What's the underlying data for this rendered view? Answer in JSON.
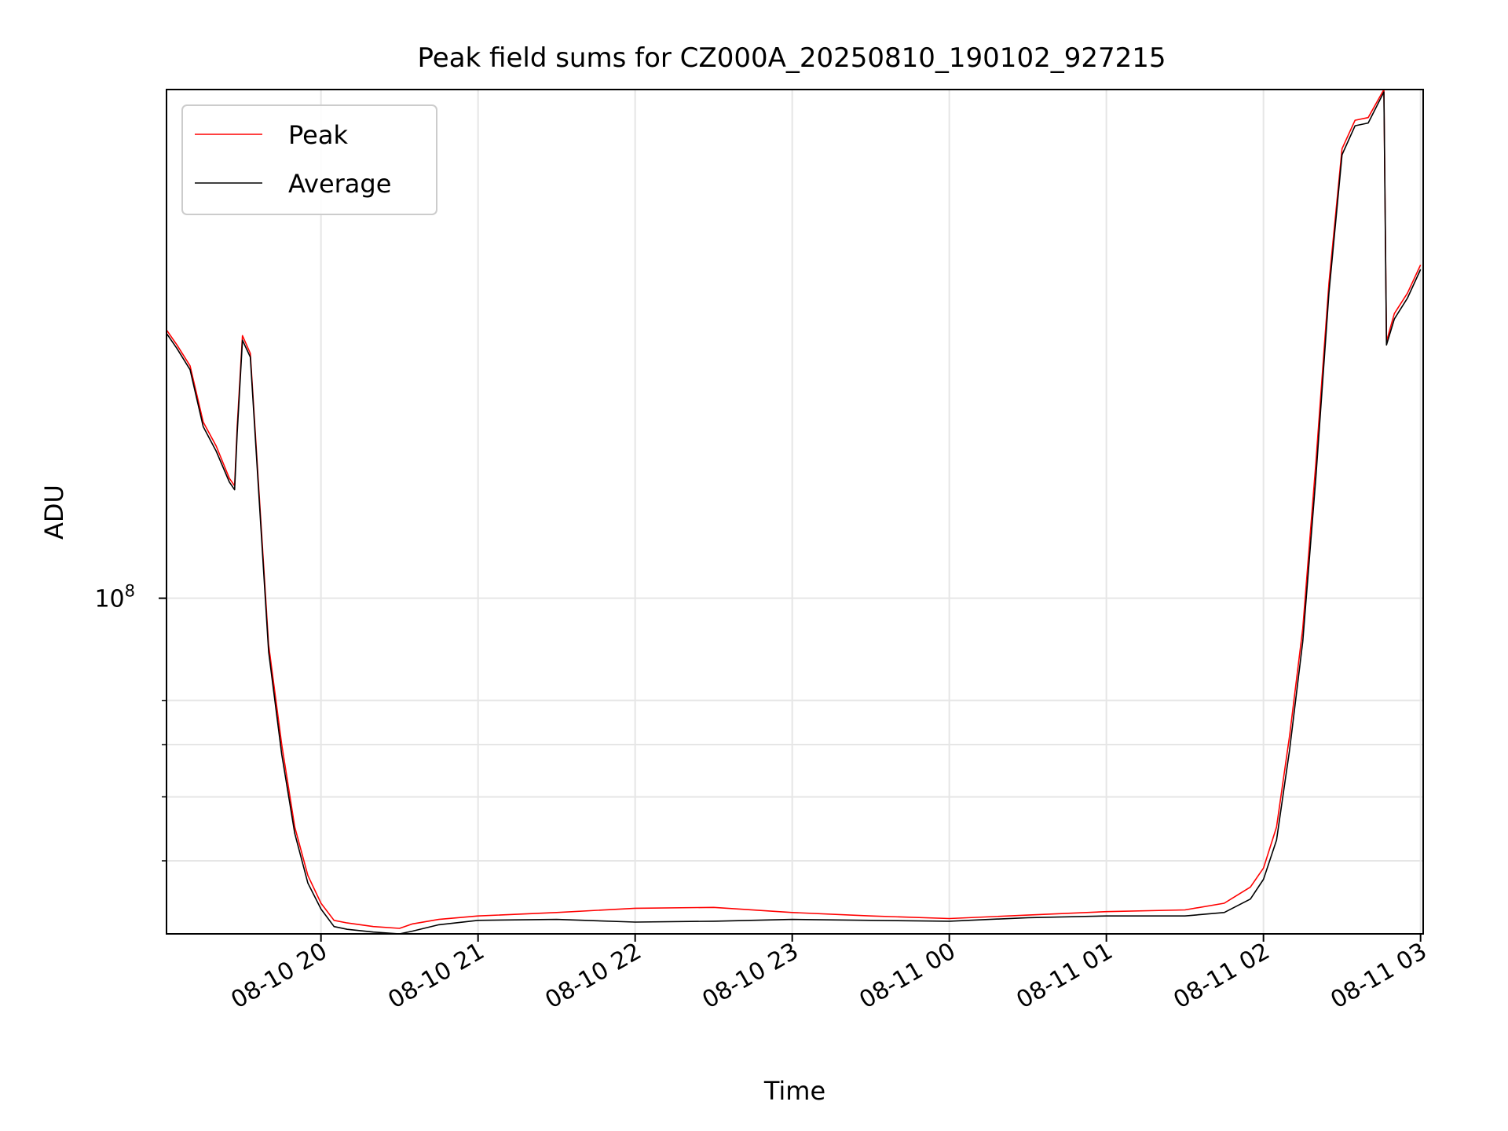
{
  "chart_data": {
    "type": "line",
    "title": "Peak field sums for CZ000A_20250810_190102_927215",
    "xlabel": "Time",
    "ylabel": "ADU",
    "y_scale": "log",
    "grid": true,
    "legend_placement": "top-left",
    "xlim": [
      "2025-08-10 19:01",
      "2025-08-11 03:01"
    ],
    "ylim": [
      31000000,
      590000000
    ],
    "x_tick_labels": [
      "08-10 20",
      "08-10 21",
      "08-10 22",
      "08-10 23",
      "08-11 00",
      "08-11 01",
      "08-11 02",
      "08-11 03"
    ],
    "x_ticks": [
      "2025-08-10 20:00",
      "2025-08-10 21:00",
      "2025-08-10 22:00",
      "2025-08-10 23:00",
      "2025-08-11 00:00",
      "2025-08-11 01:00",
      "2025-08-11 02:00",
      "2025-08-11 03:00"
    ],
    "y_major_tick": {
      "value": 100000000,
      "base": "10",
      "exponent": "8"
    },
    "y_minor_ticks": [
      40000000,
      50000000,
      60000000,
      70000000
    ],
    "series": [
      {
        "name": "Peak",
        "color": "#ff0000",
        "x": [
          "2025-08-10 19:01",
          "2025-08-10 19:05",
          "2025-08-10 19:10",
          "2025-08-10 19:15",
          "2025-08-10 19:20",
          "2025-08-10 19:25",
          "2025-08-10 19:27",
          "2025-08-10 19:28",
          "2025-08-10 19:30",
          "2025-08-10 19:33",
          "2025-08-10 19:40",
          "2025-08-10 19:45",
          "2025-08-10 19:50",
          "2025-08-10 19:55",
          "2025-08-10 20:00",
          "2025-08-10 20:05",
          "2025-08-10 20:10",
          "2025-08-10 20:20",
          "2025-08-10 20:30",
          "2025-08-10 20:35",
          "2025-08-10 20:45",
          "2025-08-10 21:00",
          "2025-08-10 21:30",
          "2025-08-10 22:00",
          "2025-08-10 22:30",
          "2025-08-10 23:00",
          "2025-08-10 23:30",
          "2025-08-11 00:00",
          "2025-08-11 00:30",
          "2025-08-11 01:00",
          "2025-08-11 01:30",
          "2025-08-11 01:45",
          "2025-08-11 01:55",
          "2025-08-11 02:00",
          "2025-08-11 02:05",
          "2025-08-11 02:10",
          "2025-08-11 02:15",
          "2025-08-11 02:20",
          "2025-08-11 02:25",
          "2025-08-11 02:30",
          "2025-08-11 02:35",
          "2025-08-11 02:40",
          "2025-08-11 02:46",
          "2025-08-11 02:47",
          "2025-08-11 02:50",
          "2025-08-11 02:55",
          "2025-08-11 03:00"
        ],
        "y": [
          255000000,
          242000000,
          225000000,
          185000000,
          170000000,
          152000000,
          148000000,
          182000000,
          250000000,
          235000000,
          85000000,
          60000000,
          45000000,
          38000000,
          34500000,
          32500000,
          32200000,
          31800000,
          31600000,
          32100000,
          32600000,
          33000000,
          33400000,
          33900000,
          34000000,
          33400000,
          33000000,
          32700000,
          33100000,
          33500000,
          33700000,
          34500000,
          36500000,
          39000000,
          45000000,
          62000000,
          90000000,
          160000000,
          300000000,
          480000000,
          530000000,
          535000000,
          590000000,
          245000000,
          270000000,
          290000000,
          320000000
        ]
      },
      {
        "name": "Average",
        "color": "#000000",
        "x": [
          "2025-08-10 19:01",
          "2025-08-10 19:05",
          "2025-08-10 19:10",
          "2025-08-10 19:15",
          "2025-08-10 19:20",
          "2025-08-10 19:25",
          "2025-08-10 19:27",
          "2025-08-10 19:28",
          "2025-08-10 19:30",
          "2025-08-10 19:33",
          "2025-08-10 19:40",
          "2025-08-10 19:45",
          "2025-08-10 19:50",
          "2025-08-10 19:55",
          "2025-08-10 20:00",
          "2025-08-10 20:05",
          "2025-08-10 20:10",
          "2025-08-10 20:20",
          "2025-08-10 20:30",
          "2025-08-10 20:35",
          "2025-08-10 20:45",
          "2025-08-10 21:00",
          "2025-08-10 21:30",
          "2025-08-10 22:00",
          "2025-08-10 22:30",
          "2025-08-10 23:00",
          "2025-08-10 23:30",
          "2025-08-11 00:00",
          "2025-08-11 00:30",
          "2025-08-11 01:00",
          "2025-08-11 01:30",
          "2025-08-11 01:45",
          "2025-08-11 01:55",
          "2025-08-11 02:00",
          "2025-08-11 02:05",
          "2025-08-11 02:10",
          "2025-08-11 02:15",
          "2025-08-11 02:20",
          "2025-08-11 02:25",
          "2025-08-11 02:30",
          "2025-08-11 02:35",
          "2025-08-11 02:40",
          "2025-08-11 02:46",
          "2025-08-11 02:47",
          "2025-08-11 02:50",
          "2025-08-11 02:55",
          "2025-08-11 03:00"
        ],
        "y": [
          252000000,
          239000000,
          222000000,
          182000000,
          167000000,
          150000000,
          146000000,
          178000000,
          246000000,
          232000000,
          83000000,
          58000000,
          44000000,
          37000000,
          33800000,
          31800000,
          31500000,
          31200000,
          31000000,
          31300000,
          32000000,
          32500000,
          32600000,
          32300000,
          32400000,
          32600000,
          32500000,
          32400000,
          32800000,
          33000000,
          33000000,
          33400000,
          35000000,
          37500000,
          43000000,
          59000000,
          86000000,
          152000000,
          290000000,
          470000000,
          520000000,
          525000000,
          585000000,
          242000000,
          265000000,
          285000000,
          315000000
        ]
      }
    ]
  }
}
